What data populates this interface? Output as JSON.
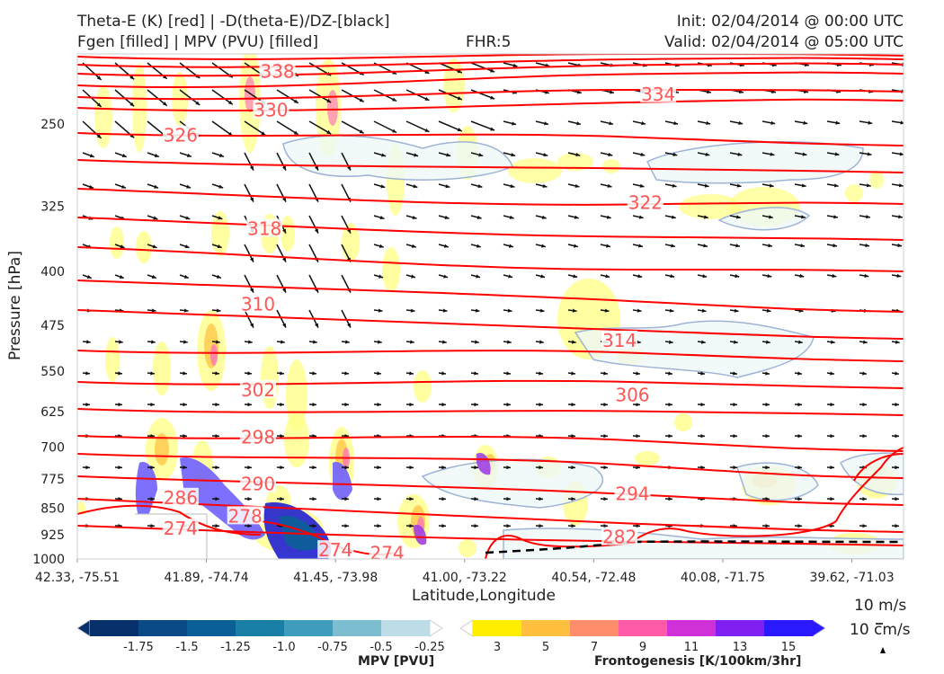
{
  "header": {
    "line1_left": "Theta-E (K) [red] | -D(theta-E)/DZ-[black]",
    "line2_left": "Fgen [filled] | MPV (PVU) [filled]",
    "fhr": "FHR:5",
    "init": "Init: 02/04/2014 @ 00:00 UTC",
    "valid": "Valid: 02/04/2014 @ 05:00 UTC"
  },
  "chart_data": {
    "type": "cross-section",
    "xlabel": "Latitude,Longitude",
    "ylabel": "Pressure [hPa]",
    "y_scale": "log",
    "ylim": [
      1000,
      200
    ],
    "xticks": [
      "42.33, -75.51",
      "41.89, -74.74",
      "41.45, -73.98",
      "41.00, -73.22",
      "40.54, -72.48",
      "40.08, -71.75",
      "39.62, -71.03"
    ],
    "yticks": [
      250,
      325,
      400,
      475,
      550,
      625,
      700,
      775,
      850,
      925,
      1000
    ],
    "theta_e_contour_labels": [
      {
        "value": "338",
        "lat_lon_index": 1.55,
        "p": 212
      },
      {
        "value": "334",
        "lat_lon_index": 4.5,
        "p": 228
      },
      {
        "value": "330",
        "lat_lon_index": 1.5,
        "p": 240
      },
      {
        "value": "326",
        "lat_lon_index": 0.8,
        "p": 260
      },
      {
        "value": "322",
        "lat_lon_index": 4.4,
        "p": 322
      },
      {
        "value": "318",
        "lat_lon_index": 1.45,
        "p": 350
      },
      {
        "value": "314",
        "lat_lon_index": 4.2,
        "p": 500
      },
      {
        "value": "310",
        "lat_lon_index": 1.4,
        "p": 445
      },
      {
        "value": "306",
        "lat_lon_index": 4.3,
        "p": 595
      },
      {
        "value": "302",
        "lat_lon_index": 1.4,
        "p": 585
      },
      {
        "value": "298",
        "lat_lon_index": 1.4,
        "p": 680
      },
      {
        "value": "294",
        "lat_lon_index": 4.3,
        "p": 815
      },
      {
        "value": "290",
        "lat_lon_index": 1.4,
        "p": 790
      },
      {
        "value": "286",
        "lat_lon_index": 0.8,
        "p": 825
      },
      {
        "value": "282",
        "lat_lon_index": 4.2,
        "p": 935
      },
      {
        "value": "278",
        "lat_lon_index": 1.3,
        "p": 875
      },
      {
        "value": "274",
        "lat_lon_index": 0.8,
        "p": 910
      },
      {
        "value": "274",
        "lat_lon_index": 2.4,
        "p": 985
      },
      {
        "value": "274",
        "lat_lon_index": 2.0,
        "p": 975
      }
    ],
    "vector_key": {
      "line1": "10 m/s",
      "line2": "10 cm/s"
    }
  },
  "colorbars": {
    "mpv": {
      "title": "MPV [PVU]",
      "labels": [
        "-1.75",
        "-1.5",
        "-1.25",
        "-1.0",
        "-0.75",
        "-0.5",
        "-0.25"
      ],
      "colors": [
        "#08306b",
        "#0a4a86",
        "#0b5f97",
        "#1a7fa6",
        "#3f9cbc",
        "#7cbdd0",
        "#bcdde7",
        "#ffffff"
      ]
    },
    "fgen": {
      "title": "Frontogenesis [K/100km/3hr]",
      "labels": [
        "3",
        "5",
        "7",
        "9",
        "11",
        "13",
        "15"
      ],
      "colors": [
        "#ffffff",
        "#ffee00",
        "#ffc040",
        "#ff8c6a",
        "#ff5aa8",
        "#d030d8",
        "#8020f0",
        "#2a18ff"
      ]
    }
  },
  "colors": {
    "theta_e": "#ff0000",
    "vectors": "#000000",
    "mpv_contour": "#8fa8cc",
    "fgen_fill": "#ffff8a"
  }
}
